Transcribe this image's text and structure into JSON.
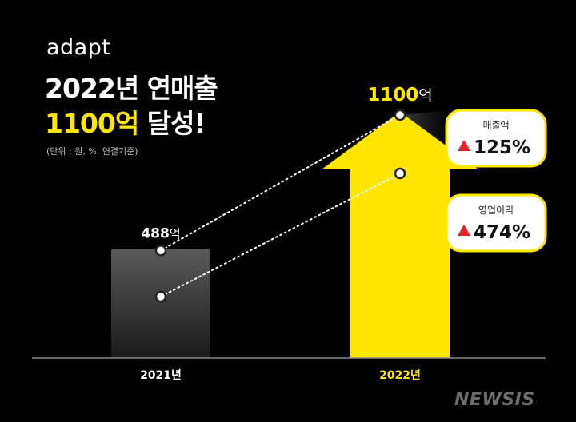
{
  "brand": {
    "logo_text": "adapt",
    "title_line1": "2022년 연매출",
    "title_highlight": "1100억",
    "title_rest": " 달성!",
    "unit_note": "(단위 : 원, %, 연결기준)",
    "watermark": "NEWSIS"
  },
  "chart_data": {
    "type": "bar",
    "categories": [
      "2021년",
      "2022년"
    ],
    "values": [
      488,
      1100
    ],
    "value_labels": [
      "488억",
      "1100억"
    ],
    "value_label_parts": [
      {
        "number": "488",
        "unit": "억"
      },
      {
        "number": "1100",
        "unit": "억"
      }
    ],
    "operating_profit_relative": [
      0.25,
      0.75
    ],
    "annotations": [
      {
        "label": "매출액",
        "change": "125%",
        "direction": "up"
      },
      {
        "label": "영업이익",
        "change": "474%",
        "direction": "up"
      }
    ],
    "colors": {
      "bar_2021_top": "#5a5a5a",
      "bar_2021_bottom": "#1a1a1a",
      "bar_2022": "#ffe600",
      "accent_red": "#e8202a",
      "callout_border": "#ffe600"
    },
    "title": "",
    "xlabel": "",
    "ylabel": "",
    "grid": false
  }
}
